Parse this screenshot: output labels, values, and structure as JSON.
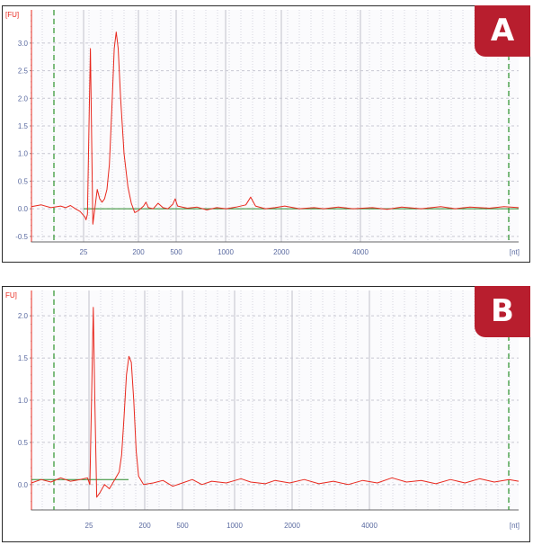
{
  "chart_data": [
    {
      "type": "line",
      "panel_label": "A",
      "ylabel": "[FU]",
      "xlabel": "[nt]",
      "x_scale": "size ladder (nonlinear, migration time)",
      "ylim": [
        -0.6,
        3.6
      ],
      "y_ticks": [
        "-0.5",
        "0.0",
        "0.5",
        "1.0",
        "1.5",
        "2.0",
        "2.5",
        "3.0"
      ],
      "y_tick_values": [
        -0.5,
        0.0,
        0.5,
        1.0,
        1.5,
        2.0,
        2.5,
        3.0
      ],
      "x_ticks": [
        "25",
        "200",
        "500",
        "1000",
        "2000",
        "4000"
      ],
      "series": [
        {
          "color": "#e8281e",
          "points": [
            [
              0.0,
              0.04
            ],
            [
              0.02,
              0.07
            ],
            [
              0.04,
              0.02
            ],
            [
              0.06,
              0.05
            ],
            [
              0.07,
              0.02
            ],
            [
              0.08,
              0.06
            ],
            [
              0.09,
              0.0
            ],
            [
              0.1,
              -0.05
            ],
            [
              0.11,
              -0.15
            ],
            [
              0.112,
              -0.2
            ],
            [
              0.115,
              -0.1
            ],
            [
              0.118,
              1.5
            ],
            [
              0.121,
              2.9
            ],
            [
              0.124,
              1.0
            ],
            [
              0.126,
              -0.28
            ],
            [
              0.13,
              0.0
            ],
            [
              0.135,
              0.35
            ],
            [
              0.14,
              0.18
            ],
            [
              0.145,
              0.12
            ],
            [
              0.15,
              0.18
            ],
            [
              0.155,
              0.35
            ],
            [
              0.16,
              0.8
            ],
            [
              0.165,
              1.8
            ],
            [
              0.17,
              2.9
            ],
            [
              0.174,
              3.2
            ],
            [
              0.178,
              2.9
            ],
            [
              0.183,
              2.0
            ],
            [
              0.19,
              1.0
            ],
            [
              0.198,
              0.4
            ],
            [
              0.205,
              0.1
            ],
            [
              0.212,
              -0.07
            ],
            [
              0.22,
              -0.03
            ],
            [
              0.23,
              0.05
            ],
            [
              0.235,
              0.12
            ],
            [
              0.24,
              0.02
            ],
            [
              0.25,
              0.0
            ],
            [
              0.26,
              0.1
            ],
            [
              0.27,
              0.02
            ],
            [
              0.28,
              0.0
            ],
            [
              0.29,
              0.08
            ],
            [
              0.295,
              0.18
            ],
            [
              0.3,
              0.05
            ],
            [
              0.32,
              0.01
            ],
            [
              0.34,
              0.03
            ],
            [
              0.36,
              -0.02
            ],
            [
              0.38,
              0.02
            ],
            [
              0.4,
              0.0
            ],
            [
              0.42,
              0.03
            ],
            [
              0.44,
              0.07
            ],
            [
              0.45,
              0.21
            ],
            [
              0.46,
              0.05
            ],
            [
              0.48,
              0.0
            ],
            [
              0.5,
              0.02
            ],
            [
              0.52,
              0.05
            ],
            [
              0.55,
              0.0
            ],
            [
              0.58,
              0.02
            ],
            [
              0.6,
              0.0
            ],
            [
              0.63,
              0.03
            ],
            [
              0.66,
              0.0
            ],
            [
              0.7,
              0.02
            ],
            [
              0.73,
              -0.01
            ],
            [
              0.76,
              0.03
            ],
            [
              0.8,
              0.0
            ],
            [
              0.84,
              0.04
            ],
            [
              0.87,
              0.0
            ],
            [
              0.9,
              0.03
            ],
            [
              0.94,
              0.01
            ],
            [
              0.97,
              0.04
            ],
            [
              1.0,
              0.02
            ]
          ]
        }
      ]
    },
    {
      "type": "line",
      "panel_label": "B",
      "ylabel": "FU]",
      "xlabel": "[nt]",
      "x_scale": "size ladder (nonlinear, migration time)",
      "ylim": [
        -0.3,
        2.3
      ],
      "y_ticks": [
        "0.0",
        "0.5",
        "1.0",
        "1.5",
        "2.0"
      ],
      "y_tick_values": [
        0.0,
        0.5,
        1.0,
        1.5,
        2.0
      ],
      "x_ticks": [
        "25",
        "200",
        "500",
        "1000",
        "2000",
        "4000"
      ],
      "series": [
        {
          "color": "#e8281e",
          "points": [
            [
              0.0,
              0.02
            ],
            [
              0.02,
              0.06
            ],
            [
              0.04,
              0.03
            ],
            [
              0.06,
              0.08
            ],
            [
              0.08,
              0.04
            ],
            [
              0.1,
              0.06
            ],
            [
              0.115,
              0.08
            ],
            [
              0.12,
              0.0
            ],
            [
              0.124,
              1.2
            ],
            [
              0.127,
              2.1
            ],
            [
              0.13,
              1.0
            ],
            [
              0.134,
              -0.15
            ],
            [
              0.14,
              -0.1
            ],
            [
              0.15,
              0.0
            ],
            [
              0.16,
              -0.05
            ],
            [
              0.17,
              0.05
            ],
            [
              0.18,
              0.15
            ],
            [
              0.185,
              0.35
            ],
            [
              0.19,
              0.8
            ],
            [
              0.195,
              1.3
            ],
            [
              0.2,
              1.52
            ],
            [
              0.205,
              1.45
            ],
            [
              0.21,
              1.0
            ],
            [
              0.215,
              0.4
            ],
            [
              0.22,
              0.1
            ],
            [
              0.23,
              0.0
            ],
            [
              0.25,
              0.02
            ],
            [
              0.27,
              0.05
            ],
            [
              0.29,
              -0.02
            ],
            [
              0.31,
              0.02
            ],
            [
              0.33,
              0.06
            ],
            [
              0.35,
              0.0
            ],
            [
              0.37,
              0.04
            ],
            [
              0.4,
              0.02
            ],
            [
              0.43,
              0.07
            ],
            [
              0.45,
              0.03
            ],
            [
              0.48,
              0.01
            ],
            [
              0.5,
              0.05
            ],
            [
              0.53,
              0.02
            ],
            [
              0.56,
              0.06
            ],
            [
              0.59,
              0.01
            ],
            [
              0.62,
              0.04
            ],
            [
              0.65,
              0.0
            ],
            [
              0.68,
              0.05
            ],
            [
              0.71,
              0.02
            ],
            [
              0.74,
              0.08
            ],
            [
              0.77,
              0.03
            ],
            [
              0.8,
              0.05
            ],
            [
              0.83,
              0.01
            ],
            [
              0.86,
              0.06
            ],
            [
              0.89,
              0.02
            ],
            [
              0.92,
              0.07
            ],
            [
              0.95,
              0.03
            ],
            [
              0.98,
              0.06
            ],
            [
              1.0,
              0.04
            ]
          ]
        }
      ]
    }
  ],
  "colors": {
    "trace": "#e8281e",
    "baseline": "#2a8a2a",
    "marker_line": "#3a9a3a",
    "grid": "#c8c8d2",
    "badge": "#b81e2e"
  }
}
